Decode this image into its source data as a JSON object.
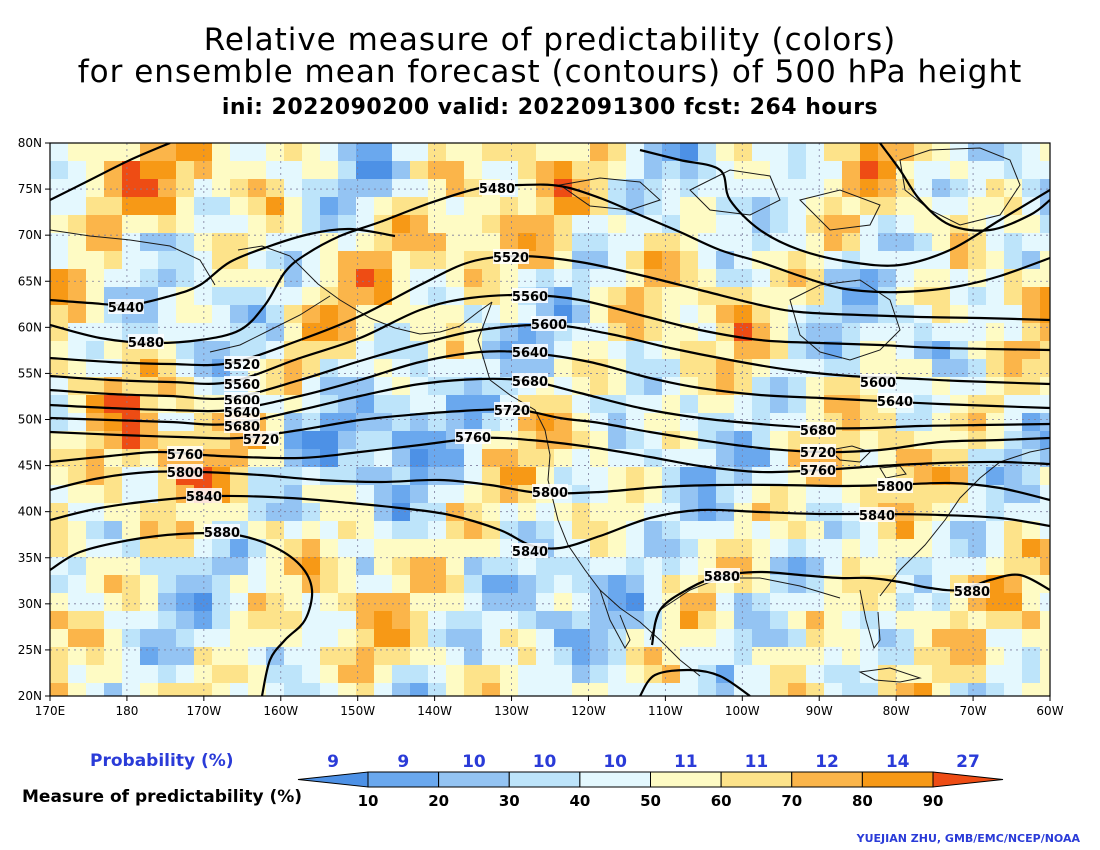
{
  "title": {
    "line1": "Relative measure of predictability (colors)",
    "line2": "for ensemble mean forecast (contours) of 500 hPa height",
    "line3": "ini: 2022090200 valid: 2022091300 fcst: 264 hours"
  },
  "axes": {
    "lat_labels": [
      "80N",
      "75N",
      "70N",
      "65N",
      "60N",
      "55N",
      "50N",
      "45N",
      "40N",
      "35N",
      "30N",
      "25N",
      "20N"
    ],
    "lon_labels": [
      "170E",
      "180",
      "170W",
      "160W",
      "150W",
      "140W",
      "130W",
      "120W",
      "110W",
      "100W",
      "90W",
      "80W",
      "70W",
      "60W"
    ],
    "lat_range": [
      20,
      80
    ],
    "lon_range_deg_east": [
      170,
      300
    ]
  },
  "legend": {
    "probability_label": "Probability (%)",
    "probability_values": [
      "9",
      "9",
      "10",
      "10",
      "10",
      "11",
      "11",
      "12",
      "14",
      "27"
    ],
    "measure_label": "Measure of predictability (%)",
    "measure_ticks": [
      "10",
      "20",
      "30",
      "40",
      "50",
      "60",
      "70",
      "80",
      "90"
    ],
    "colors": [
      "#4d91e6",
      "#6aa8ee",
      "#94c4f3",
      "#bde4fa",
      "#e4f8fe",
      "#fefbc4",
      "#fde38a",
      "#fbb54a",
      "#f79916",
      "#ee4c14"
    ]
  },
  "contours": {
    "levels": [
      "5440",
      "5480",
      "5520",
      "5560",
      "5600",
      "5640",
      "5680",
      "5720",
      "5760",
      "5800",
      "5840",
      "5880"
    ]
  },
  "credit": "YUEJIAN ZHU, GMB/EMC/NCEP/NOAA"
}
